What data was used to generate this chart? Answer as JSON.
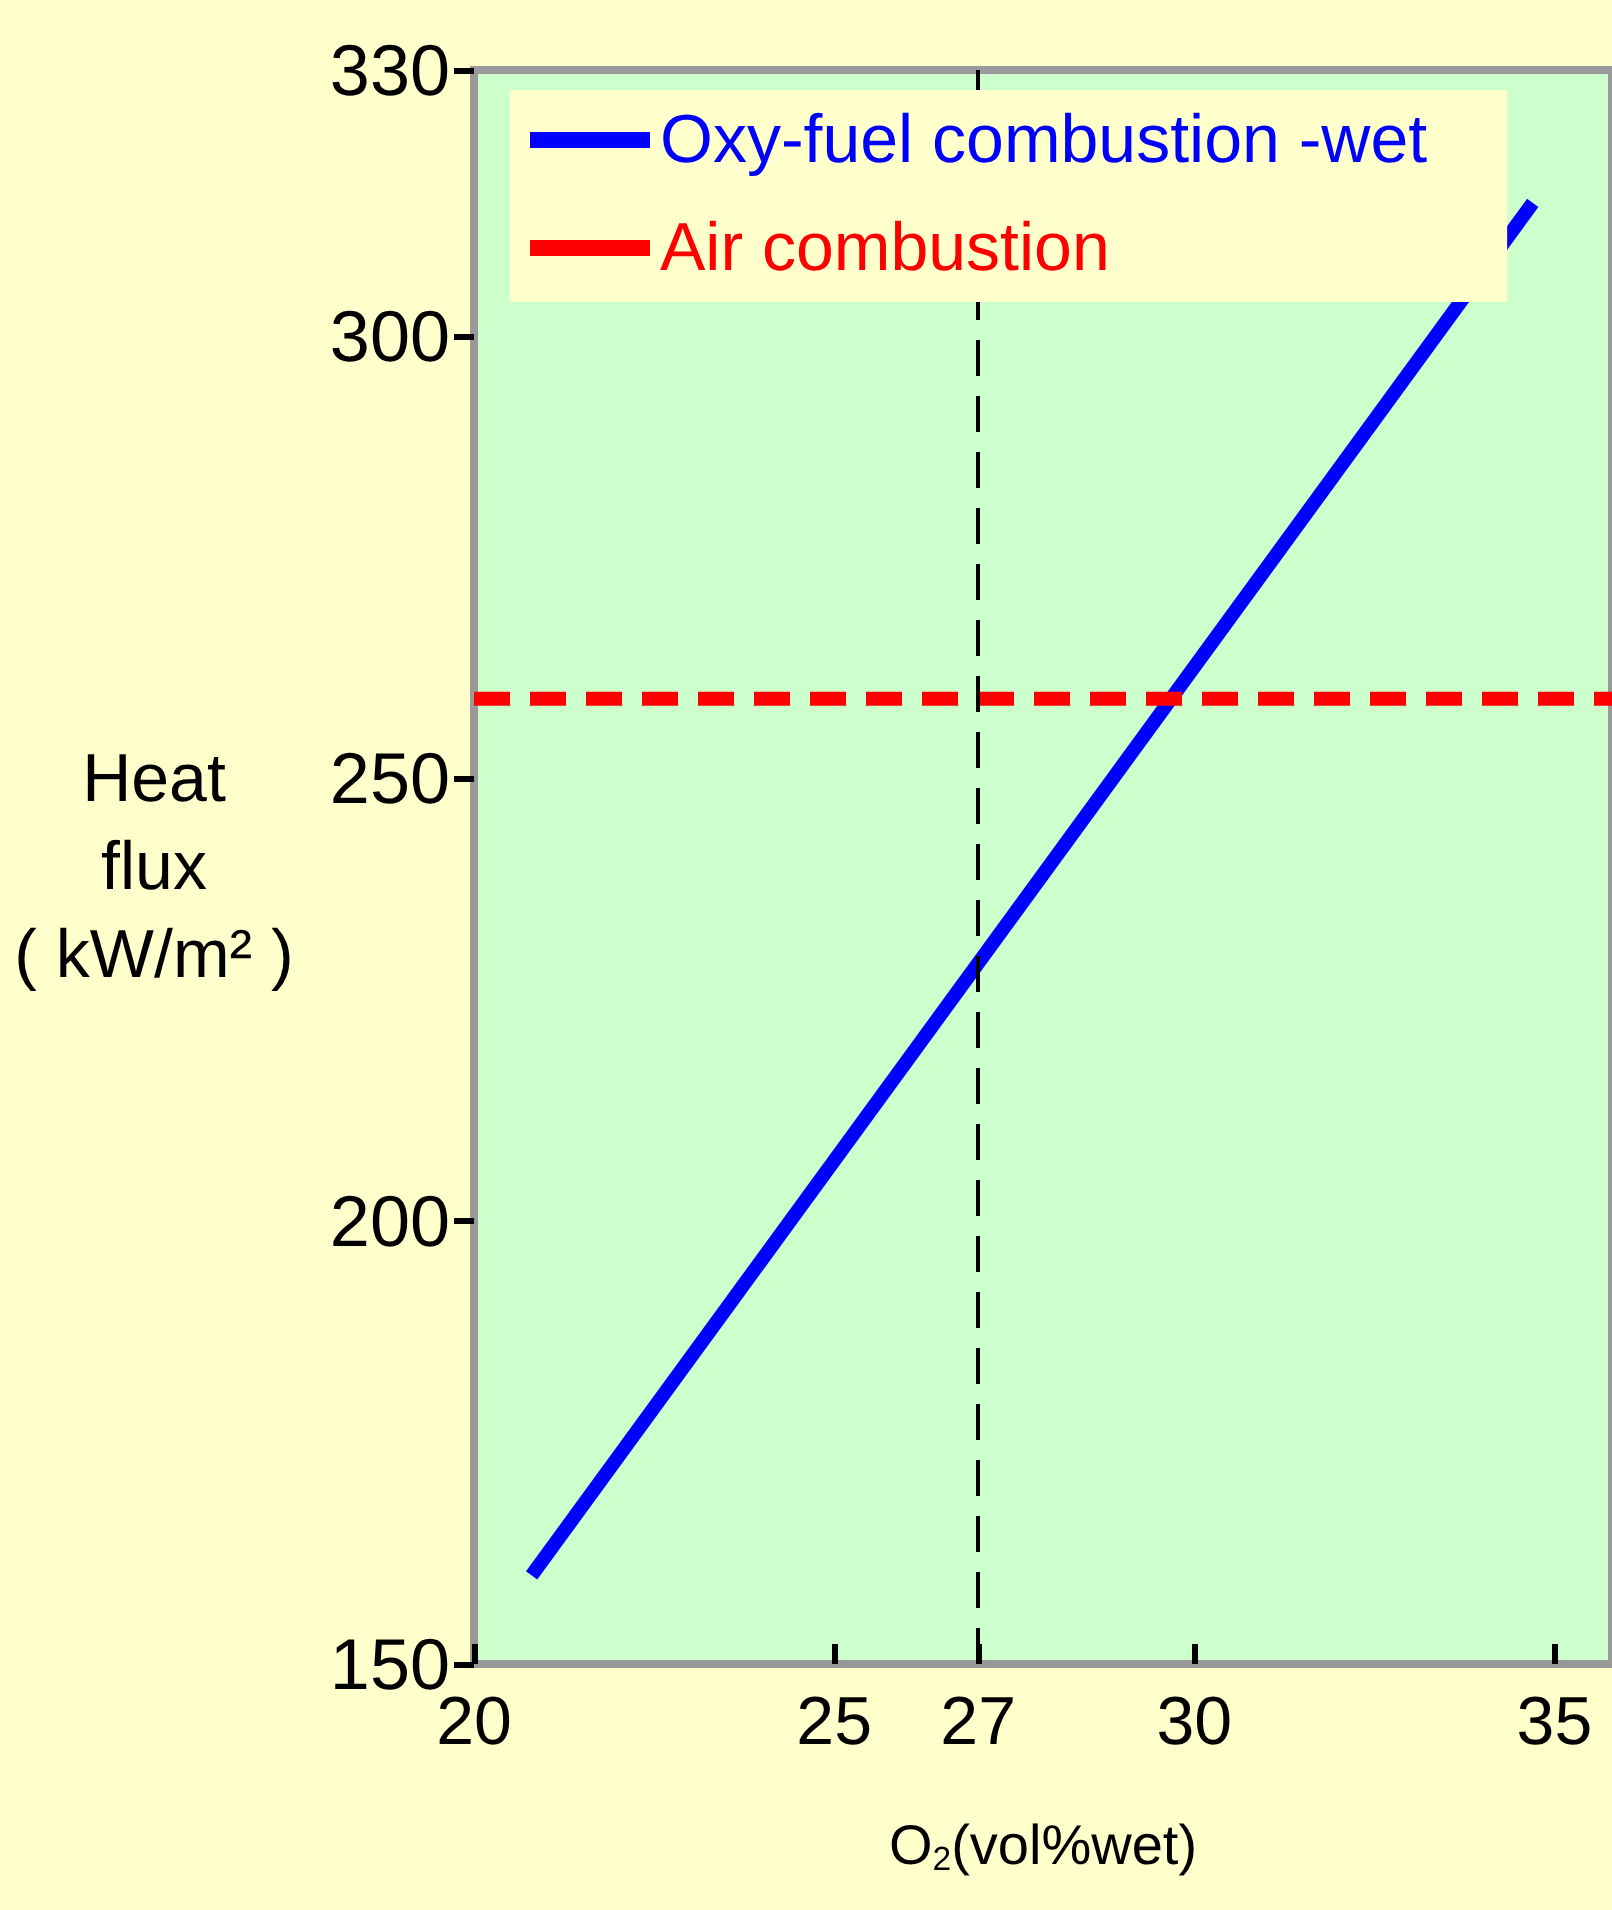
{
  "chart_data": {
    "type": "line",
    "xlabel": "O$_{2}$(vol%wet)",
    "ylabel": "Heat\nflux\n( kW/m² )",
    "xlim": [
      20,
      35.8
    ],
    "xticks": [
      20,
      25,
      27,
      30,
      35
    ],
    "ylim": [
      150,
      330
    ],
    "yticks": [
      150,
      200,
      250,
      300,
      330
    ],
    "series": [
      {
        "name": "Oxy-fuel combustion -wet",
        "color": "#0000ff",
        "x": [
          20.8,
          34.7
        ],
        "values": [
          160,
          315
        ],
        "line_style": "solid"
      },
      {
        "name": "Air combustion",
        "color": "#ff0000",
        "x": [
          20,
          35.8
        ],
        "values": [
          259,
          259
        ],
        "line_style": "dashed"
      }
    ],
    "ref_lines": [
      {
        "axis": "x",
        "value": 27,
        "color": "#000000",
        "line_style": "dashed"
      }
    ],
    "legend": "top",
    "grid": false,
    "marker": "none"
  }
}
